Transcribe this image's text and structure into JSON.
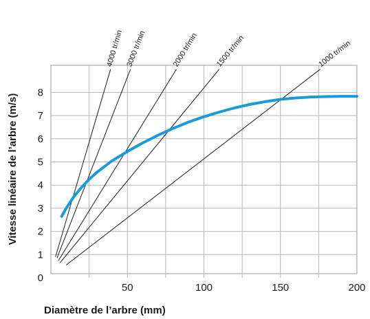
{
  "chart_data": {
    "type": "line",
    "title": "",
    "xlabel": "Diamètre de l’arbre (mm)",
    "ylabel": "Vitesse linéaire de l’arbre (m/s)",
    "xlim": [
      0,
      200
    ],
    "ylim": [
      0,
      9
    ],
    "x_ticks": [
      "50",
      "100",
      "150",
      "200"
    ],
    "y_ticks": [
      "0",
      "1",
      "2",
      "3",
      "4",
      "5",
      "6",
      "7",
      "8"
    ],
    "grid": true,
    "legend": "none",
    "series": [
      {
        "color": "#1a9ad6",
        "x": [
          7,
          10,
          15,
          20,
          25,
          30,
          40,
          50,
          60,
          70,
          80,
          90,
          100,
          110,
          120,
          130,
          140,
          150,
          160,
          170,
          180,
          190,
          200
        ],
        "y": [
          2.65,
          3.0,
          3.5,
          3.9,
          4.25,
          4.55,
          5.05,
          5.45,
          5.82,
          6.15,
          6.45,
          6.72,
          6.95,
          7.15,
          7.33,
          7.48,
          7.6,
          7.7,
          7.76,
          7.8,
          7.82,
          7.83,
          7.83
        ]
      }
    ],
    "rpm_lines": [
      {
        "label": "4000 tr/min",
        "x": [
          3,
          39
        ],
        "y": [
          0.9,
          9.0
        ]
      },
      {
        "label": "3000 tr/min",
        "x": [
          4,
          52
        ],
        "y": [
          0.85,
          9.0
        ]
      },
      {
        "label": "2000 tr/min",
        "x": [
          5,
          82
        ],
        "y": [
          0.75,
          9.0
        ]
      },
      {
        "label": "1500 tr/min",
        "x": [
          6,
          110
        ],
        "y": [
          0.65,
          9.0
        ]
      },
      {
        "label": "1000 tr/min",
        "x": [
          10,
          176
        ],
        "y": [
          0.55,
          9.0
        ]
      }
    ]
  }
}
